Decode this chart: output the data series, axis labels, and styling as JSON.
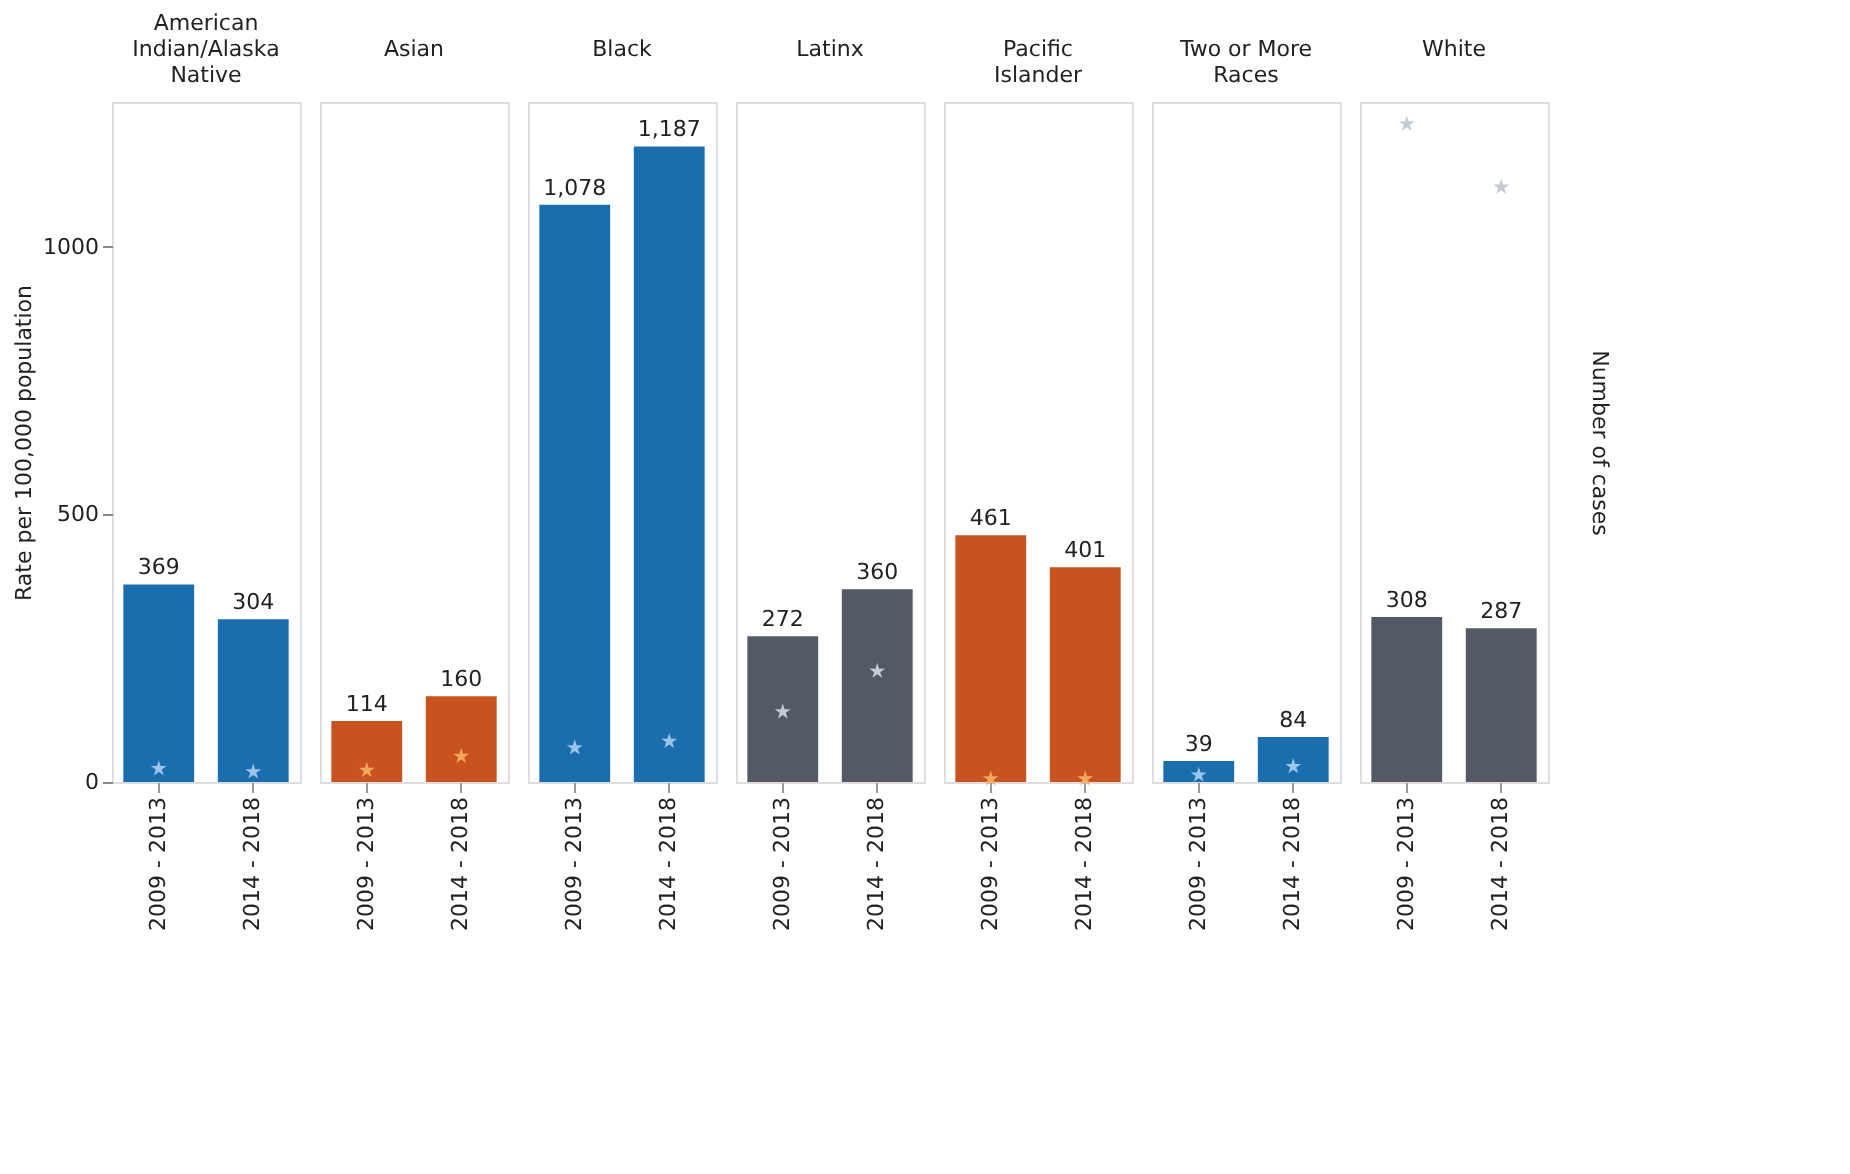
{
  "chart_data": [
    {
      "type": "bar",
      "title": "American Indian/Alaska Native",
      "ylabel": "Rate per 100,000 population",
      "categories": [
        "2009 - 2013",
        "2014 - 2018"
      ],
      "ylim": [
        0,
        1270
      ],
      "yticks": [
        0,
        500,
        1000
      ],
      "tick_labels": "xy",
      "series": [
        {
          "color": "#1b6ead",
          "values": [
            369,
            304
          ],
          "value_labels": [
            "369",
            "304"
          ]
        },
        {
          "type": "scatter",
          "marker": "star",
          "color": "#9cc5ea",
          "values": [
            25,
            19
          ]
        }
      ]
    },
    {
      "type": "bar",
      "title": "Asian",
      "categories": [
        "2009 - 2013",
        "2014 - 2018"
      ],
      "ylim": [
        0,
        1270
      ],
      "tick_labels": "x",
      "series": [
        {
          "color": "#c9531f",
          "values": [
            114,
            160
          ],
          "value_labels": [
            "114",
            "160"
          ]
        },
        {
          "type": "scatter",
          "marker": "star",
          "color": "#f6a85a",
          "values": [
            22,
            48
          ]
        }
      ]
    },
    {
      "type": "bar",
      "title": "Black",
      "categories": [
        "2009 - 2013",
        "2014 - 2018"
      ],
      "ylim": [
        0,
        1270
      ],
      "tick_labels": "x",
      "series": [
        {
          "color": "#1b6ead",
          "values": [
            1078,
            1187
          ],
          "value_labels": [
            "1,078",
            "1,187"
          ]
        },
        {
          "type": "scatter",
          "marker": "star",
          "color": "#9cc5ea",
          "values": [
            64,
            76
          ]
        }
      ]
    },
    {
      "type": "bar",
      "title": "Latinx",
      "categories": [
        "2009 - 2013",
        "2014 - 2018"
      ],
      "ylim": [
        0,
        1270
      ],
      "tick_labels": "x",
      "series": [
        {
          "color": "#535a66",
          "values": [
            272,
            360
          ],
          "value_labels": [
            "272",
            "360"
          ]
        },
        {
          "type": "scatter",
          "marker": "star",
          "color": "#c3cad6",
          "values": [
            131,
            207
          ]
        }
      ]
    },
    {
      "type": "bar",
      "title": "Pacific Islander",
      "categories": [
        "2009 - 2013",
        "2014 - 2018"
      ],
      "ylim": [
        0,
        1270
      ],
      "tick_labels": "x",
      "series": [
        {
          "color": "#c9531f",
          "values": [
            461,
            401
          ],
          "value_labels": [
            "461",
            "401"
          ]
        },
        {
          "type": "scatter",
          "marker": "star",
          "color": "#f6a85a",
          "values": [
            6,
            6
          ]
        }
      ]
    },
    {
      "type": "bar",
      "title": "Two or More Races",
      "categories": [
        "2009 - 2013",
        "2014 - 2018"
      ],
      "ylim": [
        0,
        1270
      ],
      "tick_labels": "x",
      "series": [
        {
          "color": "#1b6ead",
          "values": [
            39,
            84
          ],
          "value_labels": [
            "39",
            "84"
          ]
        },
        {
          "type": "scatter",
          "marker": "star",
          "color": "#9cc5ea",
          "values": [
            13,
            29
          ]
        }
      ]
    },
    {
      "type": "bar",
      "title": "White",
      "y2label": "Number of cases",
      "categories": [
        "2009 - 2013",
        "2014 - 2018"
      ],
      "ylim": [
        0,
        1270
      ],
      "tick_labels": "x",
      "series": [
        {
          "color": "#535a66",
          "values": [
            308,
            287
          ],
          "value_labels": [
            "308",
            "287"
          ]
        },
        {
          "type": "scatter",
          "marker": "star",
          "color": "#c3cad6",
          "values": [
            1229,
            1111
          ]
        }
      ]
    }
  ]
}
